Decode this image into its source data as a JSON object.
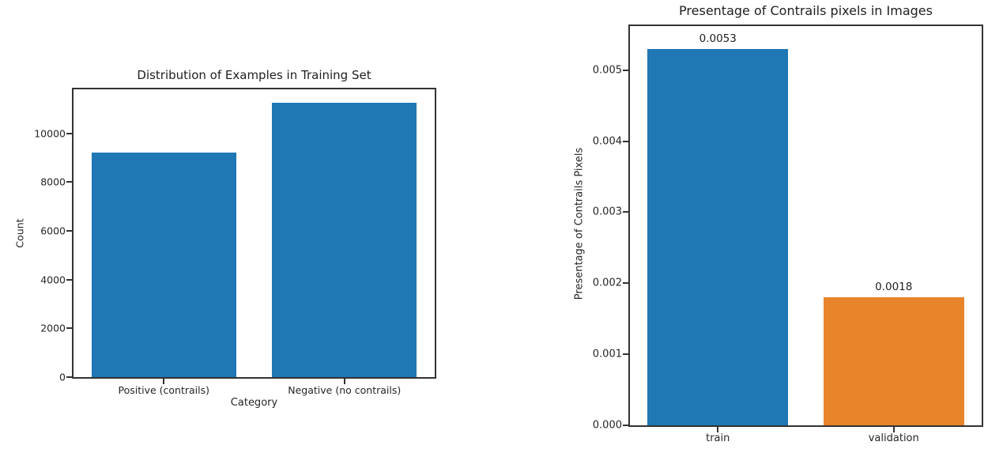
{
  "colors": {
    "background": "#ffffff",
    "axis": "#333333",
    "text": "#262626",
    "bar_blue": "#1f77b4",
    "bar_orange": "#e8842a"
  },
  "chart_data": [
    {
      "type": "bar",
      "title": "Distribution of Examples in Training Set",
      "xlabel": "Category",
      "ylabel": "Count",
      "categories": [
        "Positive (contrails)",
        "Negative (no contrails)"
      ],
      "values": [
        9200,
        11250
      ],
      "bar_colors": [
        "#1f77b4",
        "#1f77b4"
      ],
      "bar_labels": null,
      "yticks": [
        "0",
        "2000",
        "4000",
        "6000",
        "8000",
        "10000"
      ],
      "ylim": [
        0,
        11800
      ],
      "grid": false,
      "legend": "none"
    },
    {
      "type": "bar",
      "title": "Presentage of Contrails pixels in Images",
      "xlabel": "",
      "ylabel": "Presentage of Contrails Pixels",
      "categories": [
        "train",
        "validation"
      ],
      "values": [
        0.0053,
        0.0018
      ],
      "bar_colors": [
        "#1f77b4",
        "#e8842a"
      ],
      "bar_labels": [
        "0.0053",
        "0.0018"
      ],
      "yticks": [
        "0.000",
        "0.001",
        "0.002",
        "0.003",
        "0.004",
        "0.005"
      ],
      "ylim": [
        0,
        0.00562
      ],
      "grid": false,
      "legend": "none"
    }
  ]
}
